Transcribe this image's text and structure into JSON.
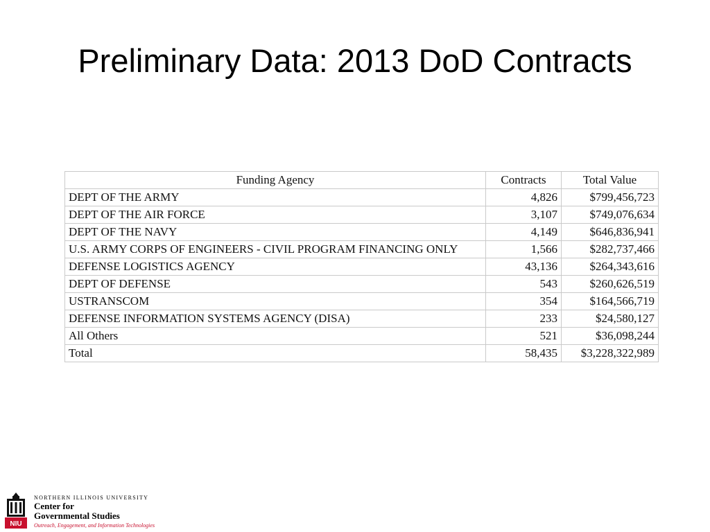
{
  "slide": {
    "title": "Preliminary Data: 2013 DoD Contracts"
  },
  "table": {
    "headers": {
      "agency": "Funding Agency",
      "contracts": "Contracts",
      "value": "Total Value"
    },
    "rows": [
      {
        "agency": "DEPT OF THE ARMY",
        "contracts": "4,826",
        "value": "$799,456,723"
      },
      {
        "agency": "DEPT OF THE AIR FORCE",
        "contracts": "3,107",
        "value": "$749,076,634"
      },
      {
        "agency": "DEPT OF THE NAVY",
        "contracts": "4,149",
        "value": "$646,836,941"
      },
      {
        "agency": "U.S. ARMY CORPS OF ENGINEERS - CIVIL PROGRAM FINANCING ONLY",
        "contracts": "1,566",
        "value": "$282,737,466"
      },
      {
        "agency": "DEFENSE LOGISTICS AGENCY",
        "contracts": "43,136",
        "value": "$264,343,616"
      },
      {
        "agency": "DEPT OF DEFENSE",
        "contracts": "543",
        "value": "$260,626,519"
      },
      {
        "agency": "USTRANSCOM",
        "contracts": "354",
        "value": "$164,566,719"
      },
      {
        "agency": "DEFENSE INFORMATION SYSTEMS AGENCY (DISA)",
        "contracts": "233",
        "value": "$24,580,127"
      },
      {
        "agency": "All Others",
        "contracts": "521",
        "value": "$36,098,244"
      }
    ],
    "total": {
      "agency": "Total",
      "contracts": "58,435",
      "value": "$3,228,322,989"
    }
  },
  "logo": {
    "university": "NORTHERN ILLINOIS UNIVERSITY",
    "center_line1": "Center for",
    "center_line2": "Governmental Studies",
    "tagline": "Outreach, Engagement, and Information Technologies",
    "mark_text": "NIU",
    "brand_color": "#c8102e",
    "icon": "university-building-icon"
  }
}
